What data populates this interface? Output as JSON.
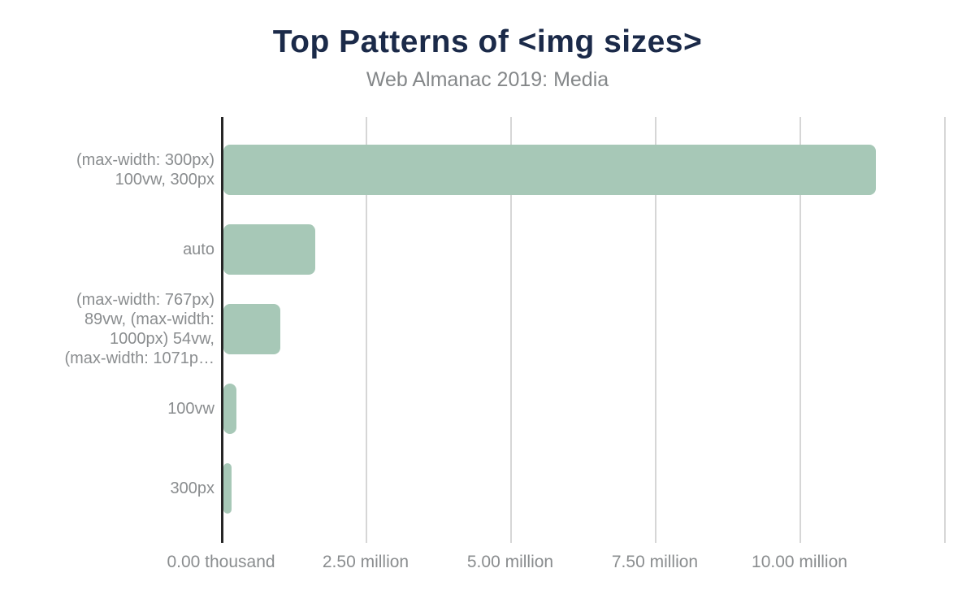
{
  "chart_data": {
    "type": "bar",
    "orientation": "horizontal",
    "title": "Top Patterns of <img sizes>",
    "subtitle": "Web Almanac 2019: Media",
    "categories": [
      "(max-width: 300px) 100vw, 300px",
      "auto",
      "(max-width: 767px) 89vw, (max-width: 1000px) 54vw, (max-width: 1071p…",
      "100vw",
      "300px"
    ],
    "category_lines": [
      [
        "(max-width: 300px)",
        "100vw, 300px"
      ],
      [
        "auto"
      ],
      [
        "(max-width: 767px)",
        "89vw, (max-width:",
        "1000px) 54vw,",
        "(max-width: 1071p…"
      ],
      [
        "100vw"
      ],
      [
        "300px"
      ]
    ],
    "values": [
      11320000,
      1630000,
      1030000,
      270000,
      180000
    ],
    "xlabel": "",
    "ylabel": "",
    "xlim": [
      0,
      13000000
    ],
    "x_ticks": [
      {
        "value": 0,
        "label": "0.00 thousand"
      },
      {
        "value": 2500000,
        "label": "2.50 million"
      },
      {
        "value": 5000000,
        "label": "5.00 million"
      },
      {
        "value": 7500000,
        "label": "7.50 million"
      },
      {
        "value": 10000000,
        "label": "10.00 million"
      },
      {
        "value": 12500000,
        "label": ""
      }
    ],
    "grid": true,
    "legend": false,
    "colors": {
      "bar": "#a7c8b7",
      "axis": "#262626",
      "gridline": "#d6d6d6",
      "title": "#1b2a49",
      "subtitle": "#848789",
      "tick_label": "#8a8d8f"
    }
  }
}
